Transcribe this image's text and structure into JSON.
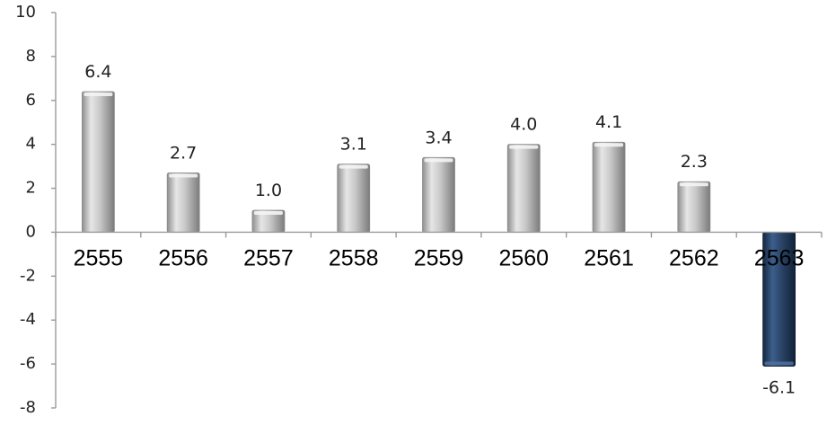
{
  "chart_data": {
    "type": "bar",
    "title": "",
    "xlabel": "",
    "ylabel": "",
    "categories": [
      "2555",
      "2556",
      "2557",
      "2558",
      "2559",
      "2560",
      "2561",
      "2562",
      "2563"
    ],
    "values": [
      6.4,
      2.7,
      1.0,
      3.1,
      3.4,
      4.0,
      4.1,
      2.3,
      -6.1
    ],
    "value_labels": [
      "6.4",
      "2.7",
      "1.0",
      "3.1",
      "3.4",
      "4.0",
      "4.1",
      "2.3",
      "-6.1"
    ],
    "ylim": [
      -8,
      10
    ],
    "yticks": [
      10,
      8,
      6,
      4,
      2,
      0,
      -2,
      -4,
      -6,
      -8
    ],
    "grid": false,
    "legend": "none",
    "colors": {
      "positive_bar": "#c8c8c8",
      "negative_bar": "#2b4669",
      "axis": "#9a9a9a"
    }
  }
}
